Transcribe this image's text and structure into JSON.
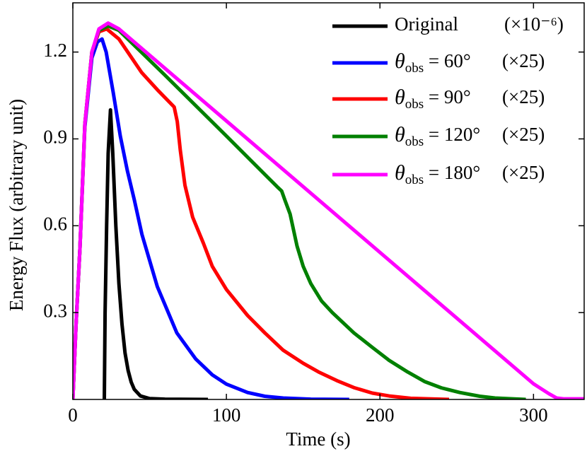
{
  "chart_data": {
    "type": "line",
    "xlabel": "Time (s)",
    "ylabel": "Energy Flux (arbitrary unit)",
    "xlim": [
      0,
      333
    ],
    "ylim": [
      0,
      1.37
    ],
    "xticks": [
      0,
      100,
      200,
      300
    ],
    "yticks": [
      0.3,
      0.6,
      0.9,
      1.2
    ],
    "legend": "upper right",
    "series": [
      {
        "name": "Original",
        "scale": "(×10⁻⁶)",
        "color": "#000000",
        "x": [
          20.5,
          21,
          22,
          23,
          24.5,
          26,
          28,
          30,
          32,
          34,
          36,
          38,
          40,
          44,
          50,
          60,
          88
        ],
        "values": [
          0,
          0.3,
          0.6,
          0.85,
          1.0,
          0.85,
          0.6,
          0.4,
          0.26,
          0.16,
          0.1,
          0.06,
          0.035,
          0.012,
          0.003,
          0.001,
          0
        ]
      },
      {
        "name": "θobs = 60°",
        "scale": "(×25)",
        "color": "#0000ff",
        "x": [
          0,
          2,
          4.6,
          7.8,
          12.4,
          16,
          19,
          21.7,
          26.3,
          30.9,
          35.5,
          40,
          45,
          55,
          67.7,
          80,
          90.8,
          100,
          113.8,
          125,
          137,
          155,
          180
        ],
        "values": [
          0,
          0.25,
          0.52,
          0.94,
          1.18,
          1.235,
          1.245,
          1.2,
          1.06,
          0.91,
          0.79,
          0.69,
          0.57,
          0.39,
          0.23,
          0.14,
          0.085,
          0.053,
          0.024,
          0.011,
          0.005,
          0.001,
          0
        ]
      },
      {
        "name": "θobs = 90°",
        "scale": "(×25)",
        "color": "#ff0000",
        "x": [
          0,
          2,
          4.6,
          7.8,
          12.4,
          17,
          22,
          30,
          44.7,
          55,
          66,
          68,
          70,
          73,
          78,
          85,
          90.8,
          100,
          113.8,
          125,
          137,
          150,
          160,
          172,
          183,
          195,
          206,
          220,
          245
        ],
        "values": [
          0,
          0.25,
          0.52,
          0.95,
          1.2,
          1.27,
          1.28,
          1.245,
          1.13,
          1.07,
          1.01,
          0.96,
          0.86,
          0.74,
          0.63,
          0.54,
          0.46,
          0.38,
          0.29,
          0.23,
          0.17,
          0.125,
          0.095,
          0.065,
          0.041,
          0.022,
          0.012,
          0.004,
          0
        ]
      },
      {
        "name": "θobs = 120°",
        "scale": "(×25)",
        "color": "#008000",
        "x": [
          0,
          2,
          4.6,
          7.8,
          12.4,
          17,
          23,
          30,
          60,
          100,
          133,
          136,
          138,
          141.5,
          146,
          150,
          155,
          162,
          169,
          183,
          195,
          206,
          218,
          229,
          240,
          252,
          265,
          275,
          295
        ],
        "values": [
          0,
          0.25,
          0.52,
          0.95,
          1.2,
          1.275,
          1.29,
          1.275,
          1.12,
          0.91,
          0.735,
          0.72,
          0.69,
          0.64,
          0.53,
          0.46,
          0.4,
          0.34,
          0.3,
          0.23,
          0.18,
          0.135,
          0.095,
          0.062,
          0.04,
          0.024,
          0.011,
          0.005,
          0
        ]
      },
      {
        "name": "θobs = 180°",
        "scale": "(×25)",
        "color": "#ff00ff",
        "x": [
          0,
          2,
          4.6,
          7.8,
          12.4,
          17,
          23,
          30,
          100,
          200,
          300,
          310,
          315,
          320,
          333
        ],
        "values": [
          0,
          0.25,
          0.52,
          0.95,
          1.2,
          1.28,
          1.3,
          1.28,
          0.962,
          0.508,
          0.054,
          0.02,
          0.005,
          0.002,
          0.002
        ]
      }
    ]
  }
}
